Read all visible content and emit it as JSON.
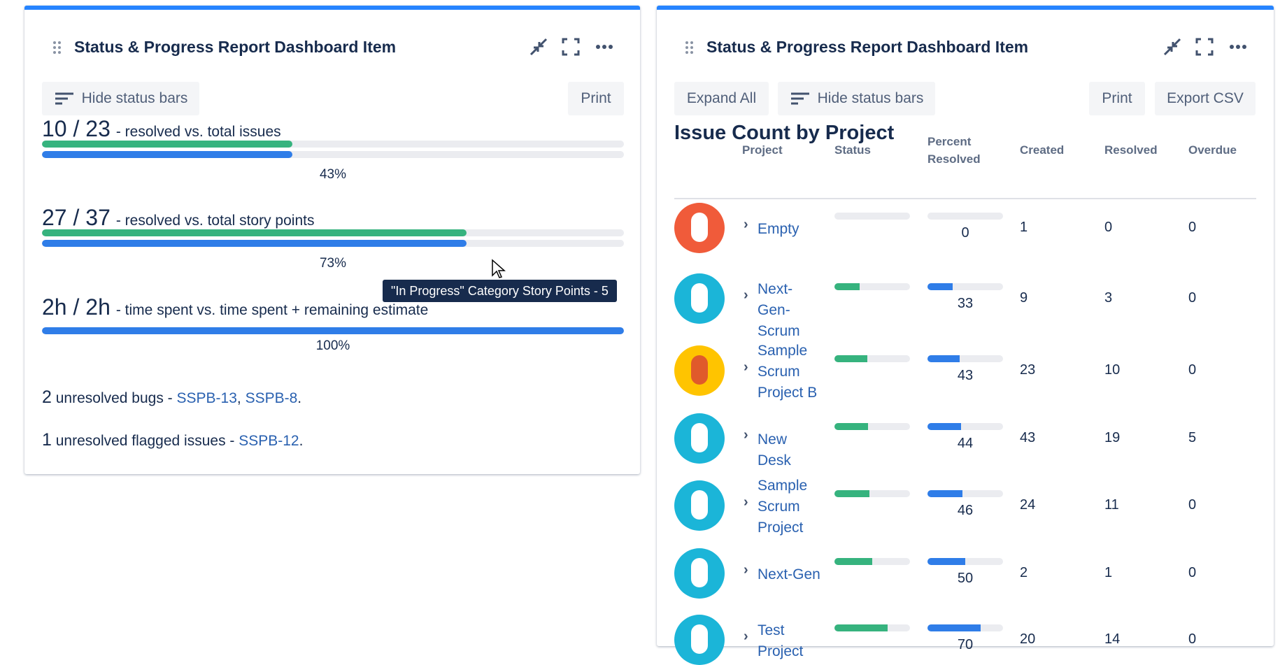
{
  "left": {
    "title": "Status & Progress Report Dashboard Item",
    "buttons": [
      "Hide status bars",
      "Print"
    ],
    "metrics": [
      {
        "value": "10 / 23",
        "text": "- resolved vs. total issues",
        "percent": 43,
        "percent_label": "43%"
      },
      {
        "value": "27 / 37",
        "text": "- resolved vs. total story points",
        "percent": 73,
        "percent_label": "73%"
      },
      {
        "value": "2h / 2h",
        "text": "- time spent vs. time spent + remaining estimate",
        "percent": 100,
        "percent_label": "100%"
      }
    ],
    "lines": [
      [
        {
          "text": "2",
          "kind": "bold"
        },
        {
          "text": " unresolved bugs - ",
          "kind": "plain"
        },
        {
          "text": "SSPB-13",
          "kind": "link"
        },
        {
          "text": ", ",
          "kind": "plain"
        },
        {
          "text": "SSPB-8",
          "kind": "link"
        },
        {
          "text": ".",
          "kind": "plain"
        }
      ],
      [
        {
          "text": "1",
          "kind": "bold"
        },
        {
          "text": " unresolved flagged issues - ",
          "kind": "plain"
        },
        {
          "text": "SSPB-12",
          "kind": "link"
        },
        {
          "text": ".",
          "kind": "plain"
        }
      ]
    ],
    "tooltip": "\"In Progress\" Category Story Points - 5"
  },
  "right": {
    "title": "Status & Progress Report Dashboard Item",
    "buttons": [
      "Expand All",
      "Hide status bars",
      "Print",
      "Export CSV"
    ],
    "table_title": "Issue Count by Project",
    "columns": [
      "Project",
      "Status",
      "Percent Resolved",
      "Created",
      "Resolved",
      "Overdue"
    ],
    "rows": [
      {
        "project": "Empty",
        "percent": 0,
        "created": 1,
        "resolved": 0,
        "overdue": 0
      },
      {
        "project": "Next-Gen-Scrum",
        "percent": 33,
        "created": 9,
        "resolved": 3,
        "overdue": 0
      },
      {
        "project": "Sample Scrum Project B",
        "percent": 43,
        "created": 23,
        "resolved": 10,
        "overdue": 0
      },
      {
        "project": "New Desk",
        "percent": 44,
        "created": 43,
        "resolved": 19,
        "overdue": 5
      },
      {
        "project": "Sample Scrum Project",
        "percent": 46,
        "created": 24,
        "resolved": 11,
        "overdue": 0
      },
      {
        "project": "Next-Gen",
        "percent": 50,
        "created": 2,
        "resolved": 1,
        "overdue": 0
      },
      {
        "project": "Test Project",
        "percent": 70,
        "created": 20,
        "resolved": 14,
        "overdue": 0
      }
    ]
  }
}
